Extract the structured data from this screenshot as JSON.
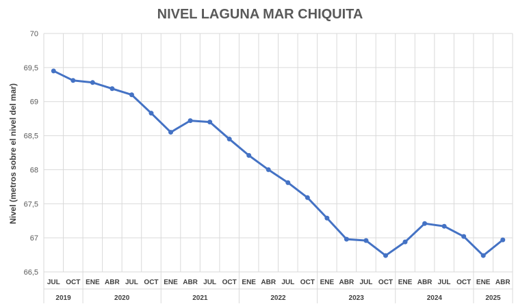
{
  "chart_data": {
    "type": "line",
    "title": "NIVEL LAGUNA MAR CHIQUITA",
    "ylabel": "Nivel (metros sobre el nivel del mar)",
    "xlabel": "",
    "ylim": [
      66.5,
      70
    ],
    "yticks": [
      "66,5",
      "67",
      "67,5",
      "68",
      "68,5",
      "69",
      "69,5",
      "70"
    ],
    "grid": true,
    "color": "#4472C4",
    "categories": [
      "JUL",
      "OCT",
      "ENE",
      "ABR",
      "JUL",
      "OCT",
      "ENE",
      "ABR",
      "JUL",
      "OCT",
      "ENE",
      "ABR",
      "JUL",
      "OCT",
      "ENE",
      "ABR",
      "JUL",
      "OCT",
      "ENE",
      "ABR",
      "JUL",
      "OCT",
      "ENE",
      "ABR"
    ],
    "years": [
      {
        "label": "2019",
        "count": 2
      },
      {
        "label": "2020",
        "count": 4
      },
      {
        "label": "2021",
        "count": 4
      },
      {
        "label": "2022",
        "count": 4
      },
      {
        "label": "2023",
        "count": 4
      },
      {
        "label": "2024",
        "count": 4
      },
      {
        "label": "2025",
        "count": 2
      }
    ],
    "values": [
      69.45,
      69.31,
      69.28,
      69.19,
      69.1,
      68.83,
      68.55,
      68.72,
      68.7,
      68.45,
      68.21,
      68.0,
      67.81,
      67.59,
      67.29,
      66.98,
      66.96,
      66.74,
      66.94,
      67.21,
      67.17,
      67.02,
      66.74,
      66.97
    ]
  }
}
